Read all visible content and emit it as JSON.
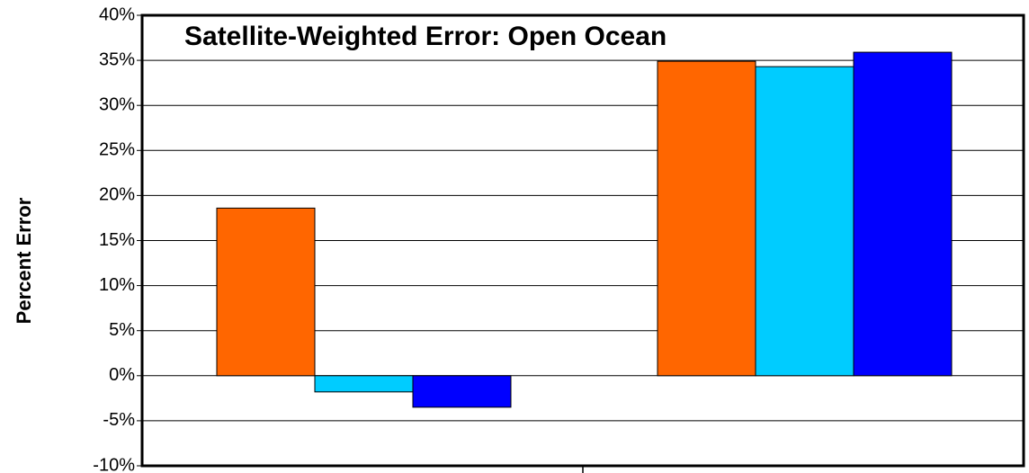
{
  "chart_data": {
    "type": "bar",
    "title": "Satellite-Weighted Error: Open Ocean",
    "y_label": "Percent Error",
    "categories": [
      null,
      null
    ],
    "series": [
      {
        "color": "#ff6600",
        "values": [
          18.6,
          34.9
        ]
      },
      {
        "color": "#00ccff",
        "values": [
          -1.8,
          34.3
        ]
      },
      {
        "color": "#0000ff",
        "values": [
          -3.5,
          35.9
        ]
      }
    ],
    "ylim": [
      -10,
      40
    ],
    "yticks": [
      {
        "value": -10,
        "label": "-10%"
      },
      {
        "value": -5,
        "label": "-5%"
      },
      {
        "value": 0,
        "label": "0%"
      },
      {
        "value": 5,
        "label": "5%"
      },
      {
        "value": 10,
        "label": "10%"
      },
      {
        "value": 15,
        "label": "15%"
      },
      {
        "value": 20,
        "label": "20%"
      },
      {
        "value": 25,
        "label": "25%"
      },
      {
        "value": 30,
        "label": "30%"
      },
      {
        "value": 35,
        "label": "35%"
      },
      {
        "value": 40,
        "label": "40%"
      }
    ],
    "grid": true
  }
}
